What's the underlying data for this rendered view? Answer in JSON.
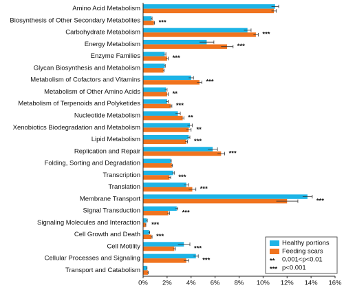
{
  "chart_data": {
    "type": "barh",
    "categories": [
      "Amino Acid Metabolism",
      "Biosynthesis of Other Secondary Metabolites",
      "Carbohydrate Metabolism",
      "Energy Metabolism",
      "Enzyme Families",
      "Glycan Biosynthesis and Metabolism",
      "Metabolism of Cofactors and Vitamins",
      "Metabolism of Other Amino Acids",
      "Metabolism of Terpenoids and Polyketides",
      "Nucleotide Metabolism",
      "Xenobiotics Biodegradation and Metabolism",
      "Lipid Metabolism",
      "Replication and Repair",
      "Folding, Sorting and Degradation",
      "Transcription",
      "Translation",
      "Membrane Transport",
      "Signal Transduction",
      "Signaling Molecules and Interaction",
      "Cell Growth and Death",
      "Cell Motility",
      "Cellular Processes and Signaling",
      "Transport and Catabolism"
    ],
    "series": [
      {
        "name": "Healthy portions",
        "color": "#1db4e6",
        "values": [
          11.0,
          0.7,
          8.7,
          5.3,
          1.8,
          1.8,
          4.0,
          1.9,
          2.0,
          2.9,
          3.9,
          3.8,
          5.8,
          2.3,
          2.5,
          3.6,
          13.7,
          2.8,
          0.3,
          0.5,
          3.4,
          4.4,
          0.3
        ],
        "errors": [
          0.3,
          0.05,
          0.3,
          0.6,
          0.1,
          0.05,
          0.2,
          0.1,
          0.1,
          0.2,
          0.2,
          0.1,
          0.4,
          0.05,
          0.1,
          0.2,
          0.4,
          0.1,
          0.05,
          0.05,
          0.5,
          0.2,
          0.03
        ]
      },
      {
        "name": "Feeding scars",
        "color": "#f0731e",
        "values": [
          10.9,
          0.9,
          9.4,
          7.0,
          2.0,
          1.7,
          4.7,
          2.0,
          2.3,
          3.3,
          3.8,
          3.6,
          6.5,
          2.4,
          2.2,
          4.1,
          12.0,
          2.1,
          0.2,
          0.7,
          2.6,
          3.6,
          0.4
        ],
        "errors": [
          0.2,
          0.05,
          0.2,
          0.5,
          0.1,
          0.05,
          0.2,
          0.1,
          0.1,
          0.1,
          0.2,
          0.1,
          0.3,
          0.05,
          0.1,
          0.3,
          0.9,
          0.1,
          0.03,
          0.05,
          0.1,
          0.2,
          0.03
        ]
      }
    ],
    "significance": [
      null,
      "***",
      "***",
      "***",
      "***",
      null,
      "***",
      "**",
      "***",
      "**",
      "**",
      "***",
      "***",
      null,
      "***",
      "***",
      "***",
      "***",
      "***",
      "***",
      "***",
      "***",
      null
    ],
    "significance_legend": [
      {
        "symbol": "**",
        "label": "0.001<p<0.01"
      },
      {
        "symbol": "***",
        "label": "p<0.001"
      }
    ],
    "significance_color": "#e8303a",
    "xlim": [
      0,
      16
    ],
    "xticks": [
      {
        "value": 0,
        "label": "0%"
      },
      {
        "value": 2,
        "label": "2%"
      },
      {
        "value": 4,
        "label": "4%"
      },
      {
        "value": 6,
        "label": "6%"
      },
      {
        "value": 8,
        "label": "8%"
      },
      {
        "value": 10,
        "label": "10%"
      },
      {
        "value": 12,
        "label": "12%"
      },
      {
        "value": 14,
        "label": "14%"
      },
      {
        "value": 16,
        "label": "16%"
      }
    ]
  }
}
